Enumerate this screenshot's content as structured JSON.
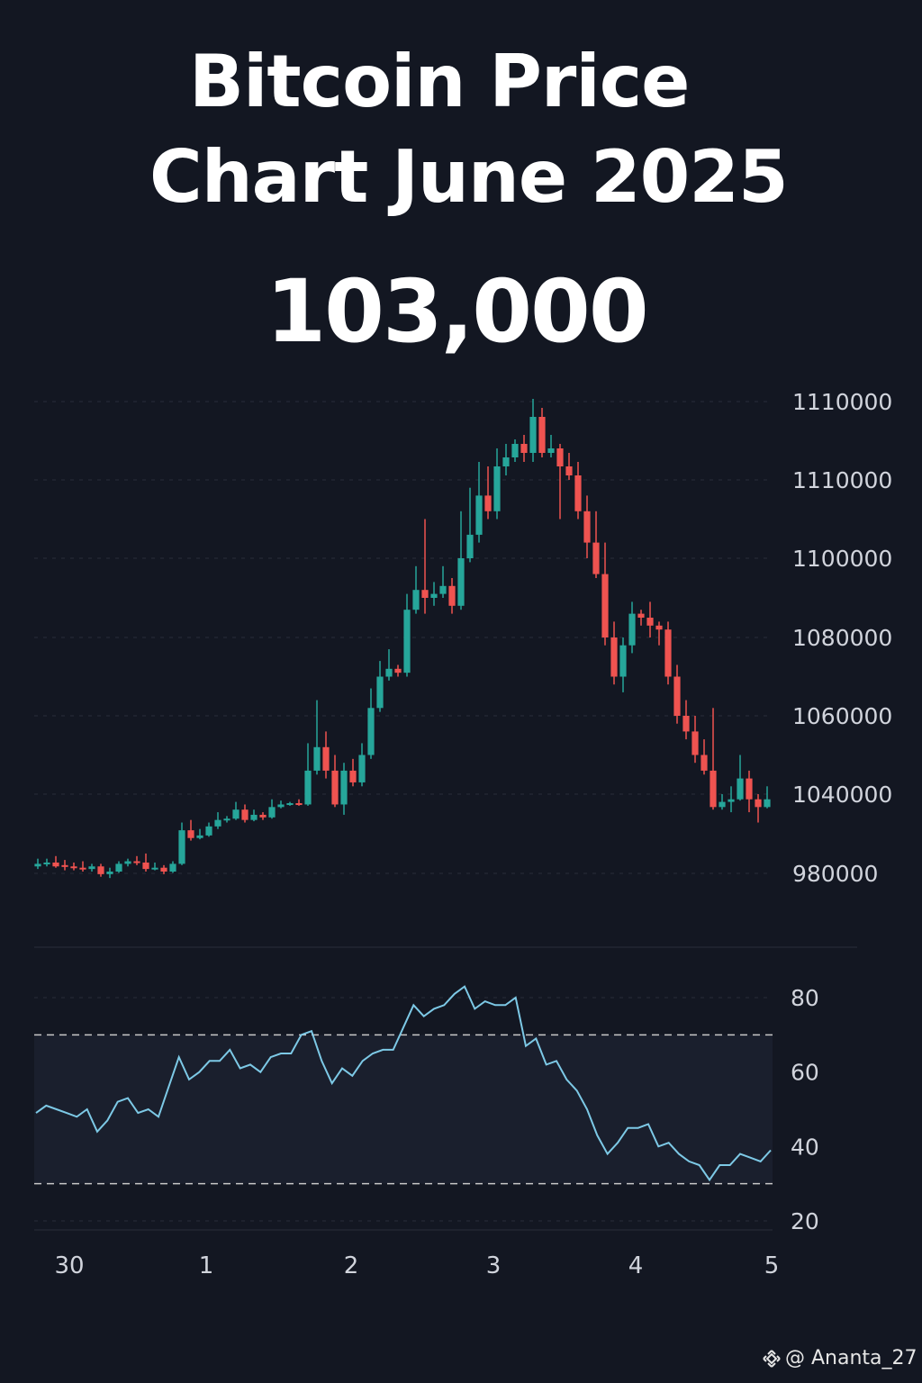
{
  "title_line1": "Bitcoin Price",
  "title_line2": "Chart June 2025",
  "price_label": "103,000",
  "watermark": "@ Ananta_27",
  "colors": {
    "background": "#131722",
    "up": "#26a69a",
    "down": "#ef5350",
    "rsi_line": "#7dc9e6",
    "grid": "#2a2e39",
    "text": "#d1d4dc"
  },
  "chart_data": [
    {
      "type": "candlestick",
      "title": "",
      "y_tick_labels": [
        "1110000",
        "1110000",
        "1100000",
        "1080000",
        "1060000",
        "1040000",
        "980000"
      ],
      "x_tick_labels": [
        "30",
        "1",
        "2",
        "3",
        "4",
        "5"
      ],
      "grid": true,
      "series": [
        {
          "values_ohlc_in_axis_units": [
            [
              984,
              986,
              982,
              990
            ],
            [
              986,
              987,
              984,
              990
            ],
            [
              987,
              984,
              983,
              992
            ],
            [
              985,
              984,
              981,
              989
            ],
            [
              984,
              983,
              981,
              987
            ],
            [
              983,
              982,
              980,
              988
            ],
            [
              982,
              984,
              980,
              986
            ],
            [
              984,
              978,
              976,
              986
            ],
            [
              978,
              980,
              975,
              983
            ],
            [
              980,
              986,
              979,
              988
            ],
            [
              986,
              988,
              984,
              990
            ],
            [
              988,
              987,
              985,
              992
            ],
            [
              987,
              982,
              980,
              994
            ],
            [
              982,
              983,
              981,
              987
            ],
            [
              983,
              980,
              978,
              985
            ],
            [
              980,
              986,
              979,
              988
            ],
            [
              986,
              1012,
              985,
              1018
            ],
            [
              1012,
              1006,
              1004,
              1020
            ],
            [
              1006,
              1008,
              1005,
              1013
            ],
            [
              1008,
              1015,
              1007,
              1018
            ],
            [
              1015,
              1020,
              1013,
              1026
            ],
            [
              1020,
              1021,
              1018,
              1023
            ],
            [
              1021,
              1028,
              1020,
              1034
            ],
            [
              1028,
              1020,
              1018,
              1032
            ],
            [
              1020,
              1024,
              1019,
              1028
            ],
            [
              1024,
              1022,
              1020,
              1026
            ],
            [
              1022,
              1030,
              1021,
              1036
            ],
            [
              1030,
              1032,
              1029,
              1035
            ],
            [
              1032,
              1033,
              1031,
              1034
            ],
            [
              1033,
              1032,
              1031,
              1036
            ],
            [
              1032,
              1046,
              1031,
              1053
            ],
            [
              1046,
              1052,
              1045,
              1064
            ],
            [
              1052,
              1046,
              1044,
              1056
            ],
            [
              1046,
              1032,
              1030,
              1050
            ],
            [
              1032,
              1046,
              1024,
              1048
            ],
            [
              1046,
              1043,
              1042,
              1049
            ],
            [
              1043,
              1050,
              1042,
              1053
            ],
            [
              1050,
              1062,
              1049,
              1067
            ],
            [
              1062,
              1070,
              1061,
              1074
            ],
            [
              1070,
              1072,
              1069,
              1077
            ],
            [
              1072,
              1071,
              1070,
              1073
            ],
            [
              1071,
              1087,
              1070,
              1091
            ],
            [
              1087,
              1092,
              1086,
              1098
            ],
            [
              1092,
              1090,
              1086,
              1105
            ],
            [
              1090,
              1091,
              1088,
              1094
            ],
            [
              1091,
              1093,
              1090,
              1098
            ],
            [
              1093,
              1088,
              1086,
              1095
            ],
            [
              1088,
              1100,
              1087,
              1106
            ],
            [
              1100,
              1103,
              1099,
              1109
            ],
            [
              1103,
              1108,
              1102,
              1114
            ],
            [
              1108,
              1106,
              1105,
              1113
            ],
            [
              1106,
              1113,
              1105,
              1117
            ],
            [
              1113,
              1115,
              1111,
              1118
            ],
            [
              1115,
              1118,
              1114,
              1119
            ],
            [
              1118,
              1116,
              1114,
              1120
            ],
            [
              1116,
              1124,
              1114,
              1128
            ],
            [
              1124,
              1116,
              1115,
              1126
            ],
            [
              1116,
              1117,
              1115,
              1120
            ],
            [
              1117,
              1113,
              1105,
              1118
            ],
            [
              1113,
              1111,
              1110,
              1116
            ],
            [
              1111,
              1106,
              1105,
              1114
            ],
            [
              1106,
              1102,
              1100,
              1108
            ],
            [
              1102,
              1096,
              1095,
              1106
            ],
            [
              1096,
              1080,
              1078,
              1102
            ],
            [
              1080,
              1070,
              1068,
              1084
            ],
            [
              1070,
              1078,
              1066,
              1080
            ],
            [
              1078,
              1086,
              1076,
              1089
            ],
            [
              1086,
              1085,
              1083,
              1087
            ],
            [
              1085,
              1083,
              1080,
              1089
            ],
            [
              1083,
              1082,
              1078,
              1084
            ],
            [
              1082,
              1070,
              1068,
              1084
            ],
            [
              1070,
              1060,
              1058,
              1073
            ],
            [
              1060,
              1056,
              1054,
              1064
            ],
            [
              1056,
              1050,
              1048,
              1060
            ],
            [
              1050,
              1046,
              1045,
              1054
            ],
            [
              1046,
              1030,
              1028,
              1062
            ],
            [
              1030,
              1034,
              1028,
              1040
            ],
            [
              1034,
              1036,
              1026,
              1042
            ],
            [
              1036,
              1044,
              1035,
              1050
            ],
            [
              1044,
              1036,
              1026,
              1046
            ],
            [
              1036,
              1030,
              1018,
              1040
            ],
            [
              1030,
              1036,
              1029,
              1042
            ]
          ]
        }
      ]
    },
    {
      "type": "line",
      "y_tick_labels": [
        "80",
        "60",
        "40",
        "20"
      ],
      "ylim": [
        20,
        80
      ],
      "reference_lines": [
        70,
        30
      ],
      "series": [
        {
          "values": [
            49,
            51,
            50,
            49,
            48,
            50,
            44,
            47,
            52,
            53,
            49,
            50,
            48,
            56,
            64,
            58,
            60,
            63,
            63,
            66,
            61,
            62,
            60,
            64,
            65,
            65,
            70,
            71,
            63,
            57,
            61,
            59,
            63,
            65,
            66,
            66,
            72,
            78,
            75,
            77,
            78,
            81,
            83,
            77,
            79,
            78,
            78,
            80,
            67,
            69,
            62,
            63,
            58,
            55,
            50,
            43,
            38,
            41,
            45,
            45,
            46,
            40,
            41,
            38,
            36,
            35,
            31,
            35,
            35,
            38,
            37,
            36,
            39
          ]
        }
      ]
    }
  ]
}
